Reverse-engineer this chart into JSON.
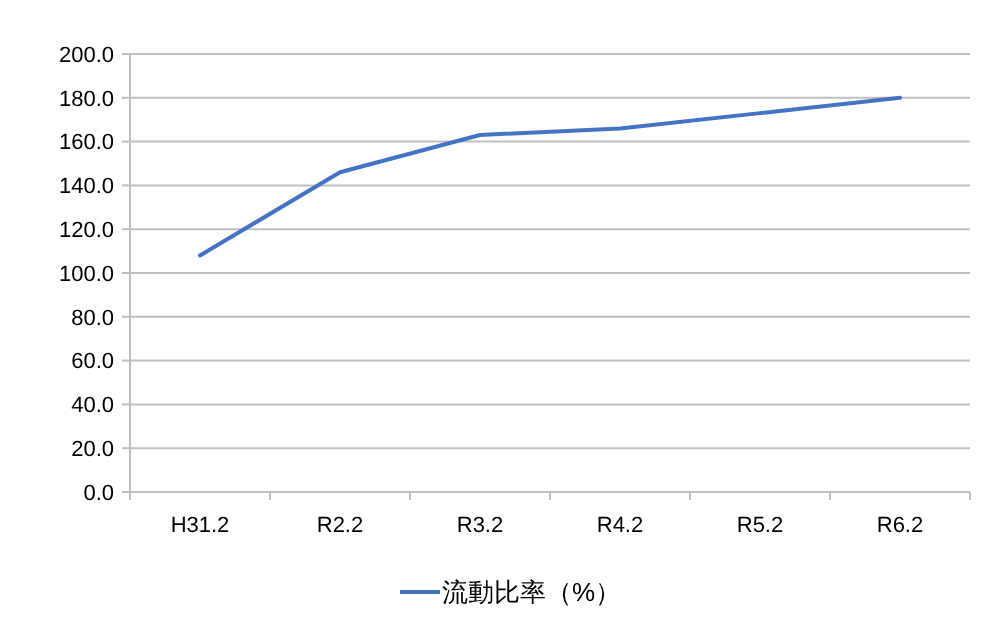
{
  "chart_data": {
    "type": "line",
    "categories": [
      "H31.2",
      "R2.2",
      "R3.2",
      "R4.2",
      "R5.2",
      "R6.2"
    ],
    "series": [
      {
        "name": "流動比率（%）",
        "color": "#4472c4",
        "values": [
          108,
          146,
          163,
          166,
          173,
          180
        ]
      }
    ],
    "ylim": [
      0,
      200
    ],
    "yticks": [
      {
        "value": 0,
        "label": "0.0"
      },
      {
        "value": 20,
        "label": "20.0"
      },
      {
        "value": 40,
        "label": "40.0"
      },
      {
        "value": 60,
        "label": "60.0"
      },
      {
        "value": 80,
        "label": "80.0"
      },
      {
        "value": 100,
        "label": "100.0"
      },
      {
        "value": 120,
        "label": "120.0"
      },
      {
        "value": 140,
        "label": "140.0"
      },
      {
        "value": 160,
        "label": "160.0"
      },
      {
        "value": 180,
        "label": "180.0"
      },
      {
        "value": 200,
        "label": "200.0"
      }
    ],
    "grid": "y",
    "legend": "bottom",
    "marker": "none",
    "line_style": "solid"
  }
}
